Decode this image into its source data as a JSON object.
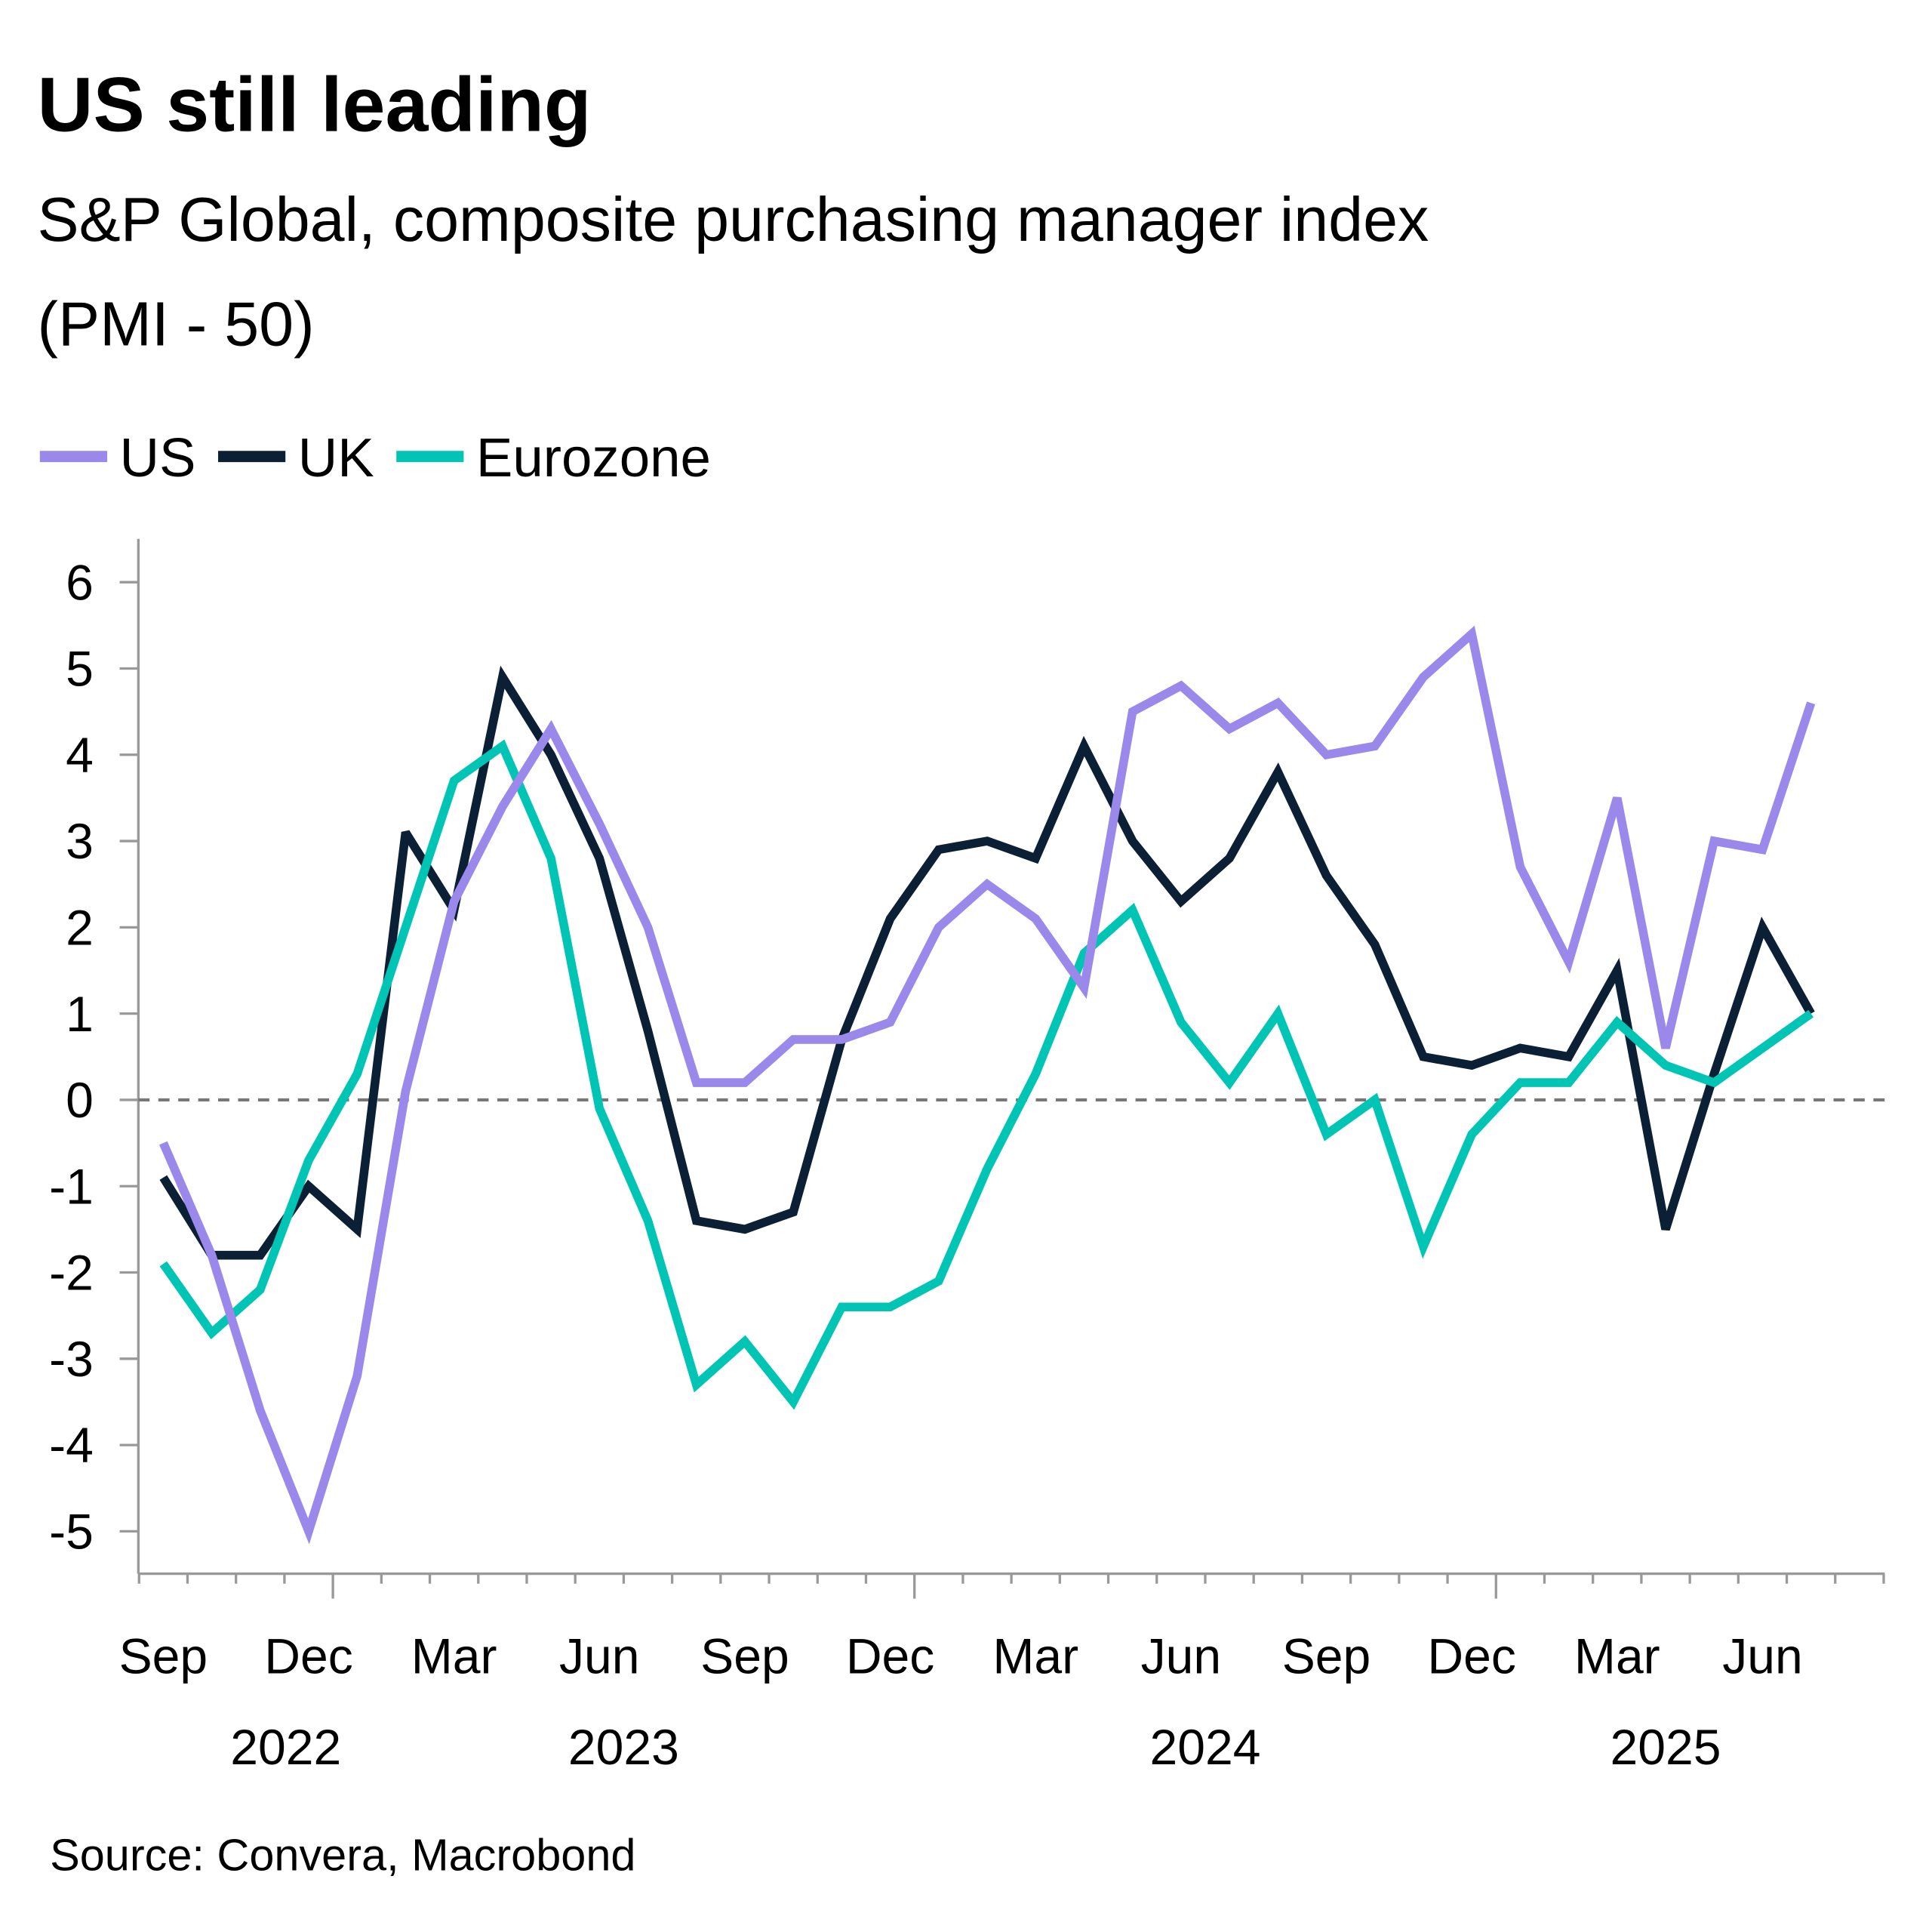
{
  "chart_data": {
    "type": "line",
    "title": "US still leading",
    "subtitle_line1": "S&P Global, composite purchasing manager index",
    "subtitle_line2": "(PMI - 50)",
    "source": "Source: Convera, Macrobond",
    "ylim": [
      -5.5,
      6.5
    ],
    "yticks": [
      "6",
      "5",
      "4",
      "3",
      "2",
      "1",
      "0",
      "-1",
      "-2",
      "-3",
      "-4",
      "-5"
    ],
    "ytick_values": [
      6,
      5,
      4,
      3,
      2,
      1,
      0,
      -1,
      -2,
      -3,
      -4,
      -5
    ],
    "reference_line": 0,
    "legend_position": "top-left",
    "x": [
      "2022-09",
      "2022-10",
      "2022-11",
      "2022-12",
      "2023-01",
      "2023-02",
      "2023-03",
      "2023-04",
      "2023-05",
      "2023-06",
      "2023-07",
      "2023-08",
      "2023-09",
      "2023-10",
      "2023-11",
      "2023-12",
      "2024-01",
      "2024-02",
      "2024-03",
      "2024-04",
      "2024-05",
      "2024-06",
      "2024-07",
      "2024-08",
      "2024-09",
      "2024-10",
      "2024-11",
      "2024-12",
      "2025-01",
      "2025-02",
      "2025-03",
      "2025-04",
      "2025-05",
      "2025-06",
      "2025-07"
    ],
    "month_labels": [
      "Sep",
      "Dec",
      "Mar",
      "Jun",
      "Sep",
      "Dec",
      "Mar",
      "Jun",
      "Sep",
      "Dec",
      "Mar",
      "Jun"
    ],
    "year_labels": [
      "2022",
      "2023",
      "2024",
      "2025"
    ],
    "series": [
      {
        "name": "US",
        "color": "#9a88ea",
        "values": [
          -0.5,
          -1.8,
          -3.6,
          -5.0,
          -3.2,
          0.1,
          2.3,
          3.4,
          4.3,
          3.2,
          2.0,
          0.2,
          0.2,
          0.7,
          0.7,
          0.9,
          2.0,
          2.5,
          2.1,
          1.3,
          4.5,
          4.8,
          4.3,
          4.6,
          4.0,
          4.1,
          4.9,
          5.4,
          2.7,
          1.6,
          3.5,
          0.6,
          3.0,
          2.9,
          4.6
        ]
      },
      {
        "name": "UK",
        "color": "#0b1f35",
        "values": [
          -0.9,
          -1.8,
          -1.8,
          -1.0,
          -1.5,
          3.1,
          2.2,
          4.9,
          4.0,
          2.8,
          0.8,
          -1.4,
          -1.5,
          -1.3,
          0.7,
          2.1,
          2.9,
          3.0,
          2.8,
          4.1,
          3.0,
          2.3,
          2.8,
          3.8,
          2.6,
          1.8,
          0.5,
          0.4,
          0.6,
          0.5,
          1.5,
          -1.5,
          0.3,
          2.0,
          1.0
        ]
      },
      {
        "name": "Eurozone",
        "color": "#00c5b4",
        "values": [
          -1.9,
          -2.7,
          -2.2,
          -0.7,
          0.3,
          2.0,
          3.7,
          4.1,
          2.8,
          -0.1,
          -1.4,
          -3.3,
          -2.8,
          -3.5,
          -2.4,
          -2.4,
          -2.1,
          -0.8,
          0.3,
          1.7,
          2.2,
          0.9,
          0.2,
          1.0,
          -0.4,
          0.0,
          -1.7,
          -0.4,
          0.2,
          0.2,
          0.9,
          0.4,
          0.2,
          0.6,
          1.0
        ]
      }
    ]
  }
}
